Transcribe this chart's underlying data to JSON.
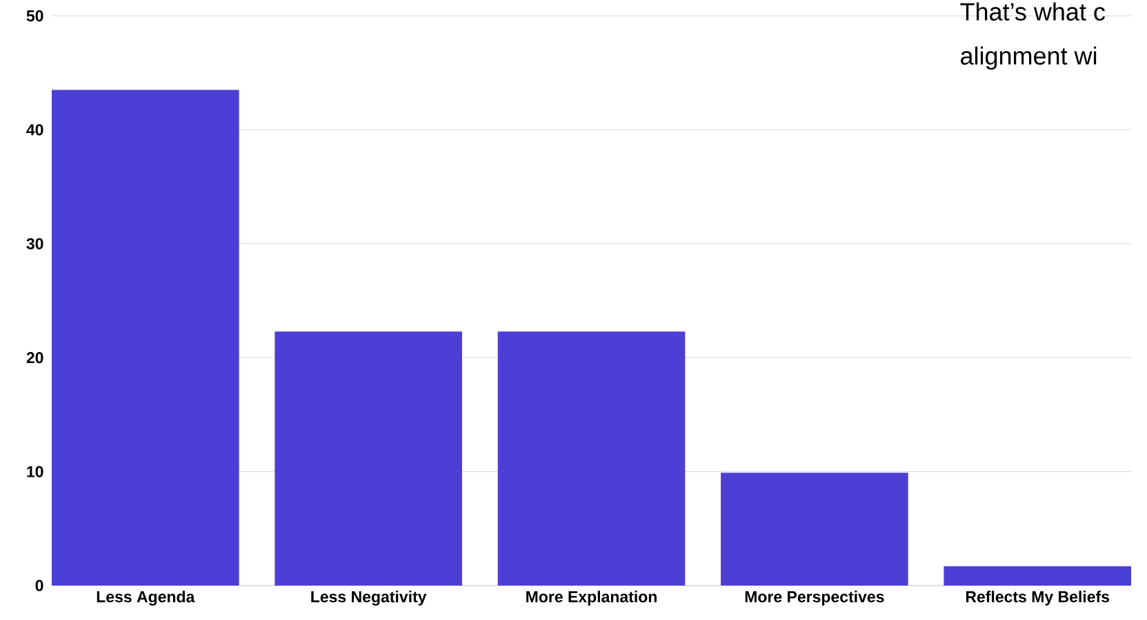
{
  "chart_data": {
    "type": "bar",
    "categories": [
      "Less Agenda",
      "Less Negativity",
      "More Explanation",
      "More Perspectives",
      "Reflects My Beliefs"
    ],
    "values": [
      43.5,
      22.3,
      22.3,
      9.9,
      1.7
    ],
    "color": "#4b3fd6",
    "ylim": [
      0,
      50
    ],
    "yticks": [
      0,
      10,
      20,
      30,
      40,
      50
    ],
    "grid": "y",
    "annotations": [
      "That’s what c",
      "alignment wi"
    ]
  }
}
